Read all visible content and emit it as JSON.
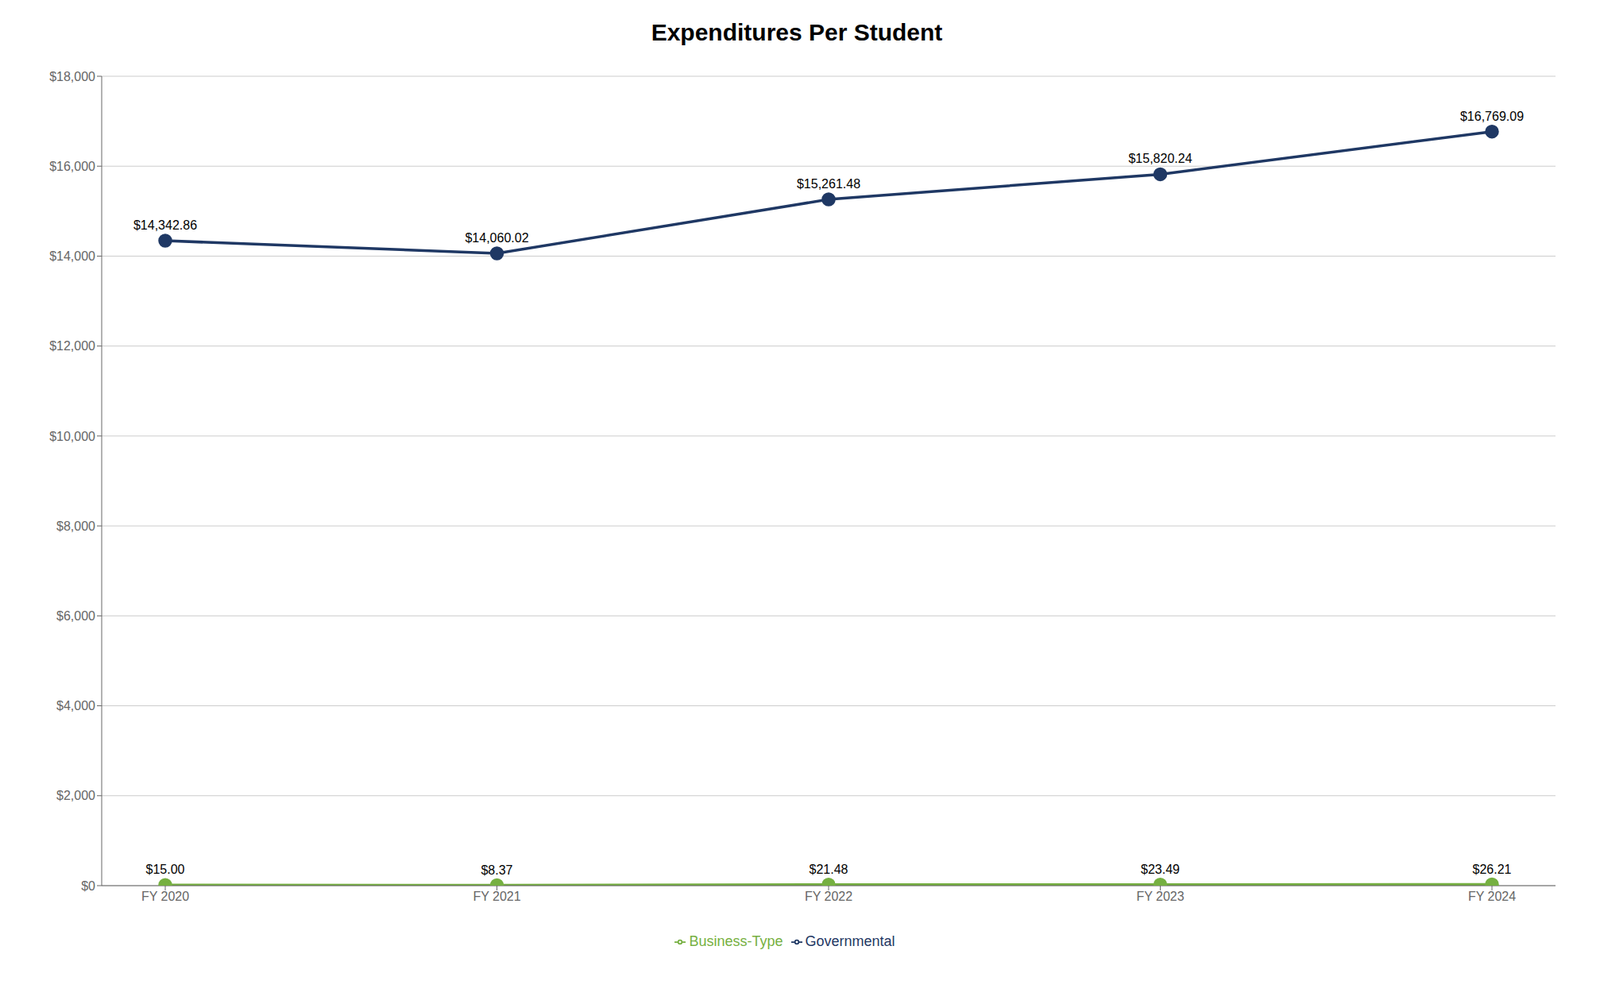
{
  "chart_data": {
    "type": "line",
    "title": "Expenditures Per Student",
    "categories": [
      "FY 2020",
      "FY 2021",
      "FY 2022",
      "FY 2023",
      "FY 2024"
    ],
    "series": [
      {
        "name": "Governmental",
        "color": "#1f3864",
        "values": [
          14342.86,
          14060.02,
          15261.48,
          15820.24,
          16769.09
        ],
        "value_labels": [
          "$14,342.86",
          "$14,060.02",
          "$15,261.48",
          "$15,820.24",
          "$16,769.09"
        ],
        "marker": "circle"
      },
      {
        "name": "Business-Type",
        "color": "#76b041",
        "values": [
          15.0,
          8.37,
          21.48,
          23.49,
          26.21
        ],
        "value_labels": [
          "$15.00",
          "$8.37",
          "$21.48",
          "$23.49",
          "$26.21"
        ],
        "marker": "circle"
      }
    ],
    "ylim": [
      0,
      18000
    ],
    "yticks": [
      {
        "value": 0,
        "label": "$0"
      },
      {
        "value": 2000,
        "label": "$2,000"
      },
      {
        "value": 4000,
        "label": "$4,000"
      },
      {
        "value": 6000,
        "label": "$6,000"
      },
      {
        "value": 8000,
        "label": "$8,000"
      },
      {
        "value": 10000,
        "label": "$10,000"
      },
      {
        "value": 12000,
        "label": "$12,000"
      },
      {
        "value": 14000,
        "label": "$14,000"
      },
      {
        "value": 16000,
        "label": "$16,000"
      },
      {
        "value": 18000,
        "label": "$18,000"
      }
    ],
    "grid": true,
    "legend": "bottom",
    "data_labels": true
  }
}
